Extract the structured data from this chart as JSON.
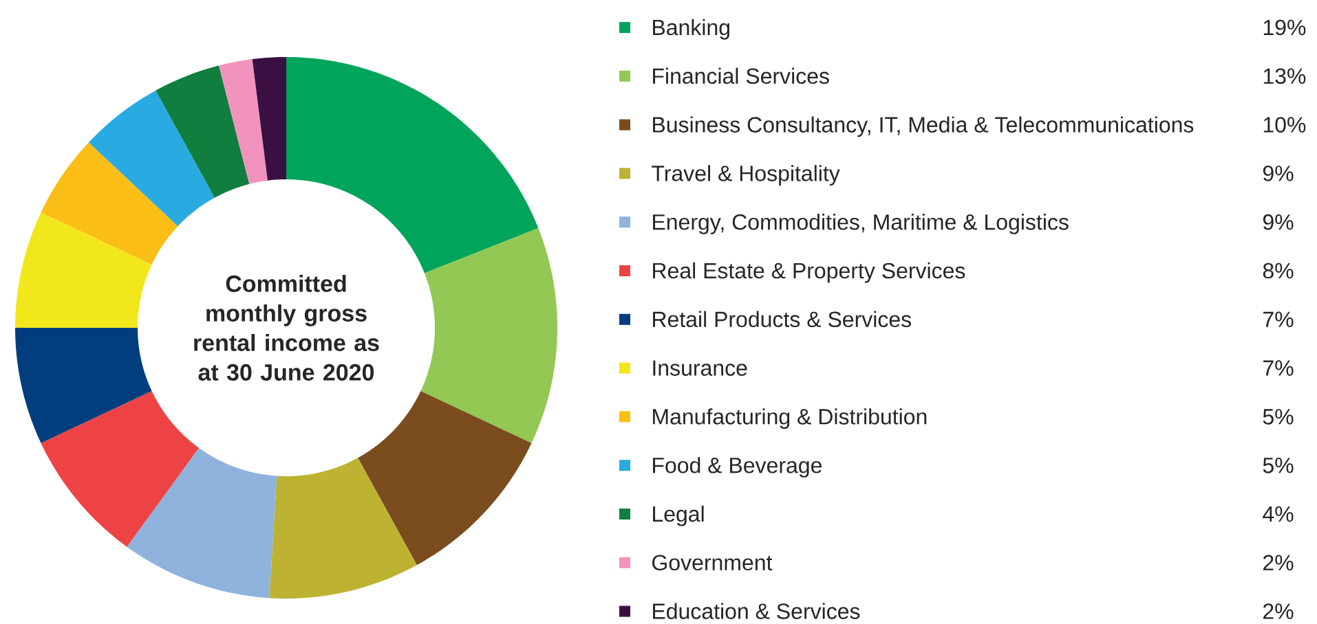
{
  "chart_data": {
    "type": "donut",
    "title": "Committed monthly gross rental income as at 30 June 2020",
    "categories": [
      "Banking",
      "Financial Services",
      "Business Consultancy, IT, Media & Telecommunications",
      "Travel & Hospitality",
      "Energy, Commodities, Maritime & Logistics",
      "Real Estate & Property Services",
      "Retail Products & Services",
      "Insurance",
      "Manufacturing & Distribution",
      "Food & Beverage",
      "Legal",
      "Government",
      "Education & Services"
    ],
    "values": [
      19,
      13,
      10,
      9,
      9,
      8,
      7,
      7,
      5,
      5,
      4,
      2,
      2
    ],
    "value_labels": [
      "19%",
      "13%",
      "10%",
      "9%",
      "9%",
      "8%",
      "7%",
      "7%",
      "5%",
      "5%",
      "4%",
      "2%",
      "2%"
    ],
    "colors": [
      "#00a45b",
      "#92c853",
      "#7b4c1e",
      "#bdb232",
      "#8fb3dc",
      "#ee4344",
      "#023d7d",
      "#f2e71b",
      "#fbbe16",
      "#29abe2",
      "#0f7e3e",
      "#f293bd",
      "#3a1042"
    ],
    "legend": "right"
  }
}
